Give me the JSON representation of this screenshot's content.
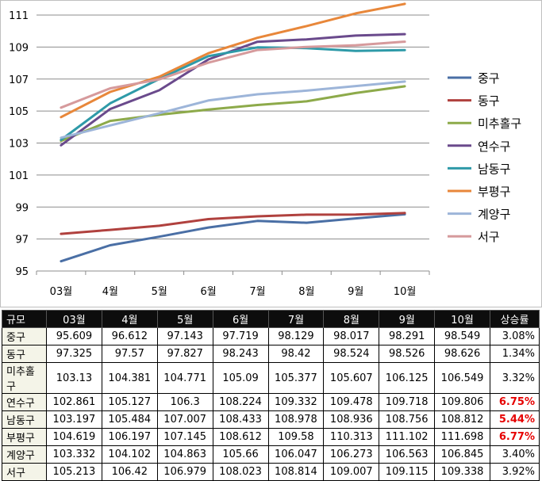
{
  "chart_data": {
    "type": "line",
    "categories": [
      "03월",
      "4월",
      "5월",
      "6월",
      "7월",
      "8월",
      "9월",
      "10월"
    ],
    "ylim": [
      95,
      111
    ],
    "yticks": [
      95,
      97,
      99,
      101,
      103,
      105,
      107,
      109,
      111
    ],
    "grid": true,
    "legend_position": "right",
    "series": [
      {
        "name": "중구",
        "color": "#4a6fa5",
        "values": [
          95.609,
          96.612,
          97.143,
          97.719,
          98.129,
          98.017,
          98.291,
          98.549
        ]
      },
      {
        "name": "동구",
        "color": "#b0413e",
        "values": [
          97.325,
          97.57,
          97.827,
          98.243,
          98.42,
          98.524,
          98.526,
          98.626
        ]
      },
      {
        "name": "미추홀구",
        "color": "#8daa4a",
        "values": [
          103.13,
          104.381,
          104.771,
          105.09,
          105.377,
          105.607,
          106.125,
          106.549
        ]
      },
      {
        "name": "연수구",
        "color": "#6a4a8c",
        "values": [
          102.861,
          105.127,
          106.3,
          108.224,
          109.332,
          109.478,
          109.718,
          109.806
        ]
      },
      {
        "name": "남동구",
        "color": "#2e9aa8",
        "values": [
          103.197,
          105.484,
          107.007,
          108.433,
          108.978,
          108.936,
          108.756,
          108.812
        ]
      },
      {
        "name": "부평구",
        "color": "#e8873a",
        "values": [
          104.619,
          106.197,
          107.145,
          108.612,
          109.58,
          110.313,
          111.102,
          111.698
        ]
      },
      {
        "name": "계양구",
        "color": "#9db5d9",
        "values": [
          103.332,
          104.102,
          104.863,
          105.66,
          106.047,
          106.273,
          106.563,
          106.845
        ]
      },
      {
        "name": "서구",
        "color": "#d69a9c",
        "values": [
          105.213,
          106.42,
          106.979,
          108.023,
          108.814,
          109.007,
          109.115,
          109.338
        ]
      }
    ]
  },
  "table": {
    "header": [
      "규모",
      "03월",
      "4월",
      "5월",
      "6월",
      "7월",
      "8월",
      "9월",
      "10월",
      "상승률"
    ],
    "rows": [
      {
        "name": "중구",
        "values": [
          "95.609",
          "96.612",
          "97.143",
          "97.719",
          "98.129",
          "98.017",
          "98.291",
          "98.549"
        ],
        "rate": "3.08%",
        "highlight": false
      },
      {
        "name": "동구",
        "values": [
          "97.325",
          "97.57",
          "97.827",
          "98.243",
          "98.42",
          "98.524",
          "98.526",
          "98.626"
        ],
        "rate": "1.34%",
        "highlight": false
      },
      {
        "name": "미추홀구",
        "values": [
          "103.13",
          "104.381",
          "104.771",
          "105.09",
          "105.377",
          "105.607",
          "106.125",
          "106.549"
        ],
        "rate": "3.32%",
        "highlight": false
      },
      {
        "name": "연수구",
        "values": [
          "102.861",
          "105.127",
          "106.3",
          "108.224",
          "109.332",
          "109.478",
          "109.718",
          "109.806"
        ],
        "rate": "6.75%",
        "highlight": true
      },
      {
        "name": "남동구",
        "values": [
          "103.197",
          "105.484",
          "107.007",
          "108.433",
          "108.978",
          "108.936",
          "108.756",
          "108.812"
        ],
        "rate": "5.44%",
        "highlight": true
      },
      {
        "name": "부평구",
        "values": [
          "104.619",
          "106.197",
          "107.145",
          "108.612",
          "109.58",
          "110.313",
          "111.102",
          "111.698"
        ],
        "rate": "6.77%",
        "highlight": true
      },
      {
        "name": "계양구",
        "values": [
          "103.332",
          "104.102",
          "104.863",
          "105.66",
          "106.047",
          "106.273",
          "106.563",
          "106.845"
        ],
        "rate": "3.40%",
        "highlight": false
      },
      {
        "name": "서구",
        "values": [
          "105.213",
          "106.42",
          "106.979",
          "108.023",
          "108.814",
          "109.007",
          "109.115",
          "109.338"
        ],
        "rate": "3.92%",
        "highlight": false
      }
    ]
  }
}
